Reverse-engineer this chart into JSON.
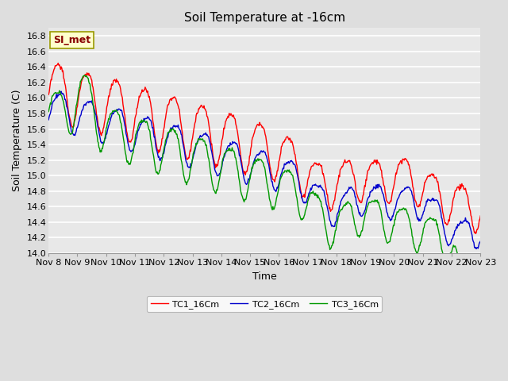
{
  "title": "Soil Temperature at -16cm",
  "xlabel": "Time",
  "ylabel": "Soil Temperature (C)",
  "ylim": [
    14.0,
    16.9
  ],
  "yticks": [
    14.0,
    14.2,
    14.4,
    14.6,
    14.8,
    15.0,
    15.2,
    15.4,
    15.6,
    15.8,
    16.0,
    16.2,
    16.4,
    16.6,
    16.8
  ],
  "xtick_labels": [
    "Nov 8",
    "Nov 9",
    "Nov 10",
    "Nov 11",
    "Nov 12",
    "Nov 13",
    "Nov 14",
    "Nov 15",
    "Nov 16",
    "Nov 17",
    "Nov 18",
    "Nov 19",
    "Nov 20",
    "Nov 21",
    "Nov 22",
    "Nov 23"
  ],
  "bg_color": "#dedede",
  "plot_bg_color": "#e8e8e8",
  "grid_color": "#ffffff",
  "line_colors": [
    "#ff0000",
    "#0000cc",
    "#009900"
  ],
  "line_labels": [
    "TC1_16Cm",
    "TC2_16Cm",
    "TC3_16Cm"
  ],
  "legend_box_color": "#ffffcc",
  "legend_text_color": "#880000",
  "watermark_text": "SI_met",
  "title_fontsize": 11,
  "axis_fontsize": 9,
  "tick_fontsize": 8,
  "linewidth": 1.0
}
